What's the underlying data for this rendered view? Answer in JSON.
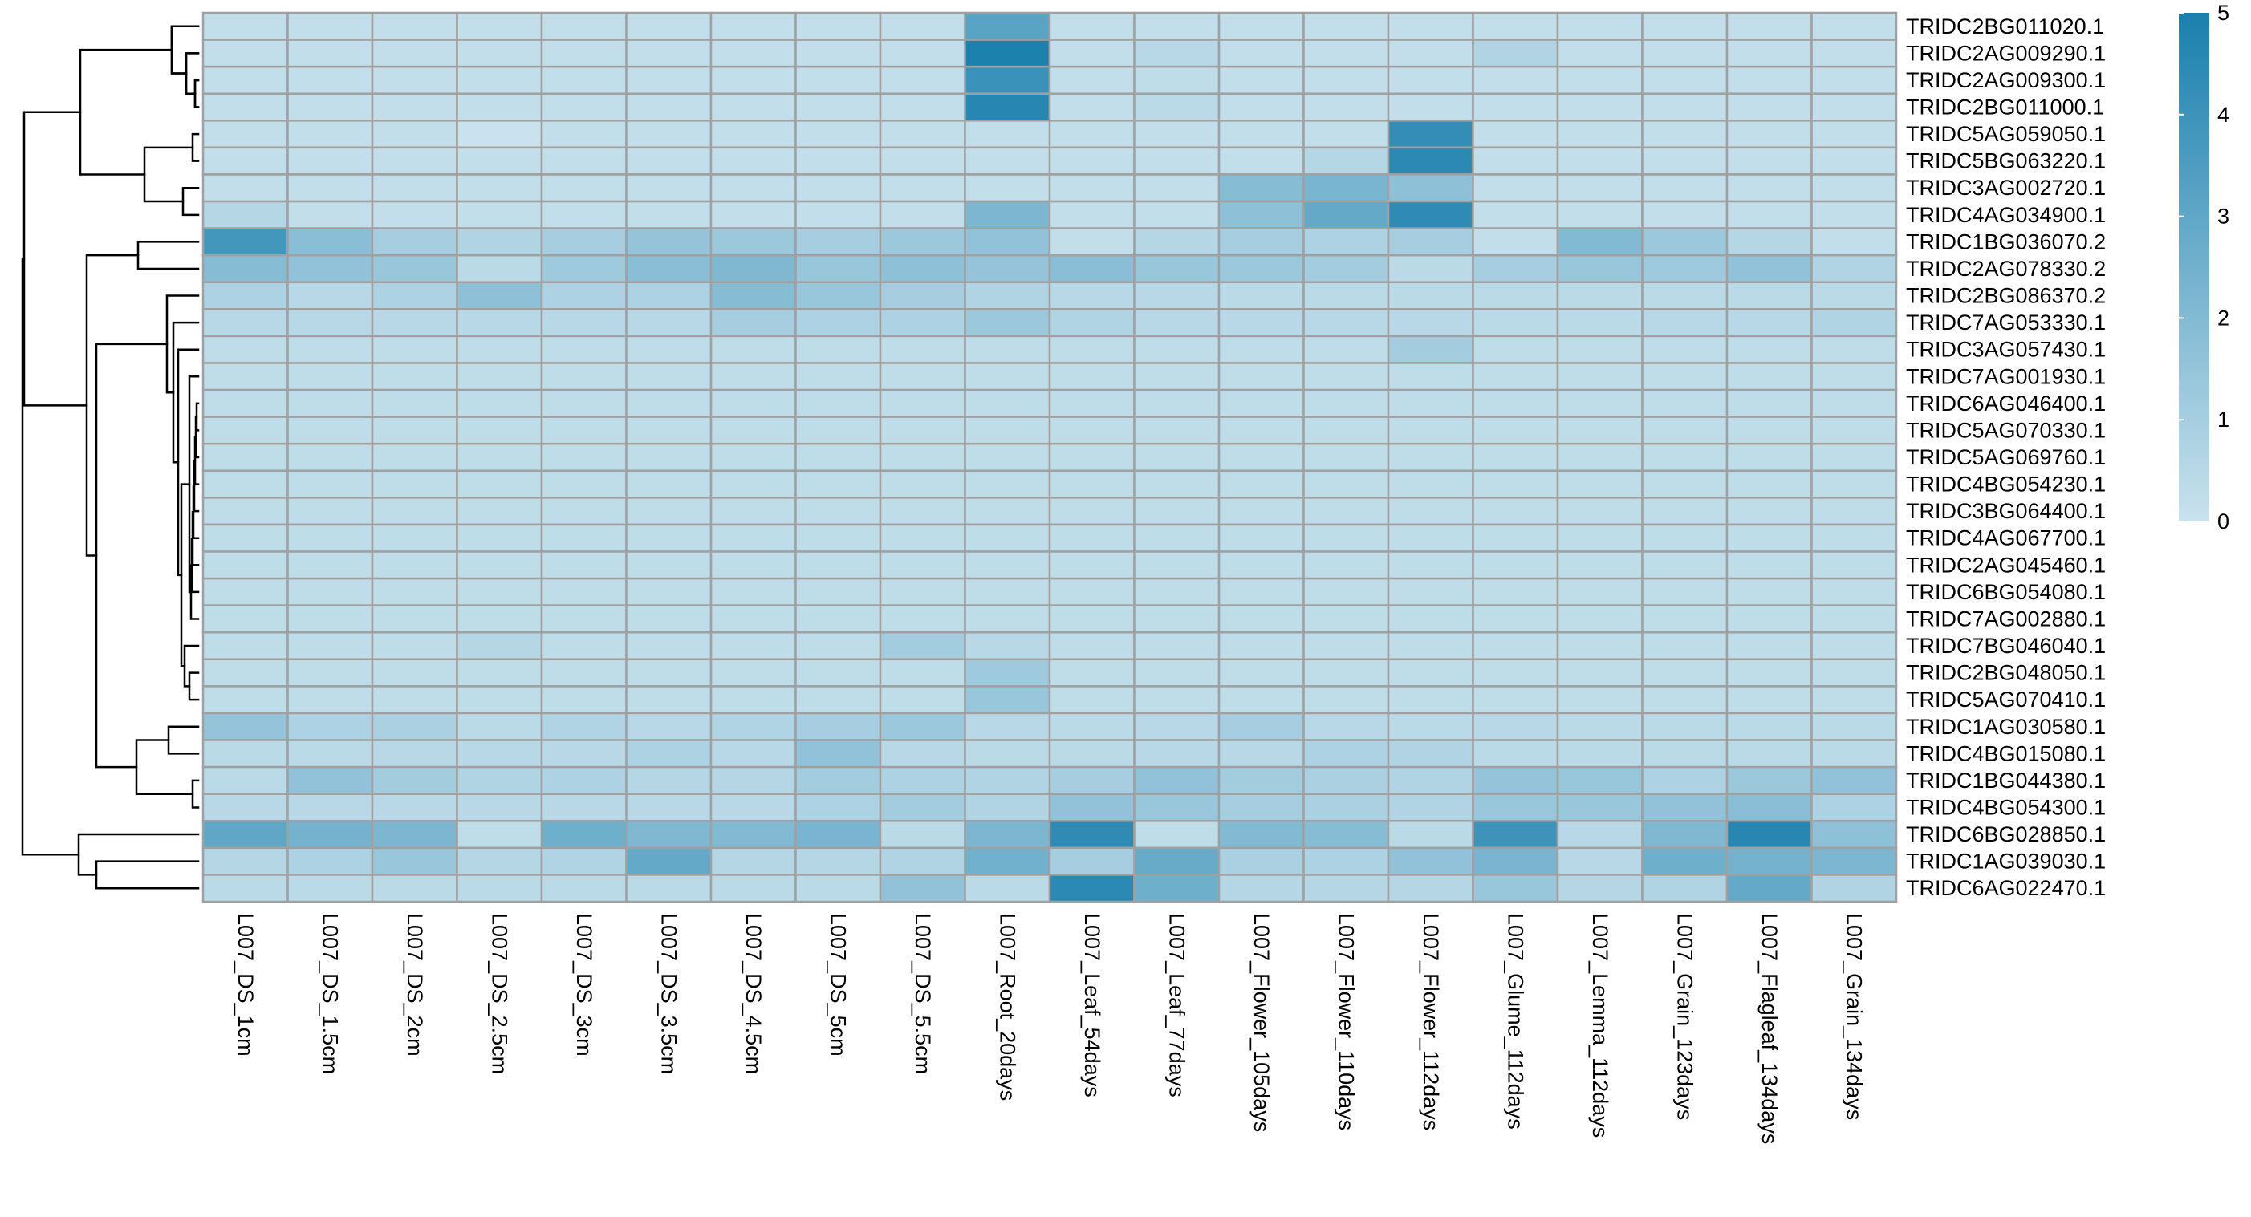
{
  "chart_data": {
    "type": "heatmap",
    "title": "",
    "xlabel": "",
    "ylabel": "",
    "columns": [
      "L007_DS_1cm",
      "L007_DS_1.5cm",
      "L007_DS_2cm",
      "L007_DS_2.5cm",
      "L007_DS_3cm",
      "L007_DS_3.5cm",
      "L007_DS_4.5cm",
      "L007_DS_5cm",
      "L007_DS_5.5cm",
      "L007_Root_20days",
      "L007_Leaf_54days",
      "L007_Leaf_77days",
      "L007_Flower_105days",
      "L007_Flower_110days",
      "L007_Flower_112days",
      "L007_Glume_112days",
      "L007_Lemma_112days",
      "L007_Grain_123days",
      "L007_Flagleaf_134days",
      "L007_Grain_134days"
    ],
    "rows": [
      "TRIDC2BG011020.1",
      "TRIDC2AG009290.1",
      "TRIDC2AG009300.1",
      "TRIDC2BG011000.1",
      "TRIDC5AG059050.1",
      "TRIDC5BG063220.1",
      "TRIDC3AG002720.1",
      "TRIDC4AG034900.1",
      "TRIDC1BG036070.2",
      "TRIDC2AG078330.2",
      "TRIDC2BG086370.2",
      "TRIDC7AG053330.1",
      "TRIDC3AG057430.1",
      "TRIDC7AG001930.1",
      "TRIDC6AG046400.1",
      "TRIDC5AG070330.1",
      "TRIDC5AG069760.1",
      "TRIDC4BG054230.1",
      "TRIDC3BG064400.1",
      "TRIDC4AG067700.1",
      "TRIDC2AG045460.1",
      "TRIDC6BG054080.1",
      "TRIDC7AG002880.1",
      "TRIDC7BG046040.1",
      "TRIDC2BG048050.1",
      "TRIDC5AG070410.1",
      "TRIDC1AG030580.1",
      "TRIDC4BG015080.1",
      "TRIDC1BG044380.1",
      "TRIDC4BG054300.1",
      "TRIDC6BG028850.1",
      "TRIDC1AG039030.1",
      "TRIDC6AG022470.1"
    ],
    "values": [
      [
        0.2,
        0.2,
        0.2,
        0.2,
        0.2,
        0.2,
        0.2,
        0.2,
        0.2,
        3.2,
        0.2,
        0.2,
        0.2,
        0.2,
        0.2,
        0.2,
        0.2,
        0.2,
        0.2,
        0.2
      ],
      [
        0.2,
        0.2,
        0.2,
        0.2,
        0.2,
        0.2,
        0.2,
        0.2,
        0.2,
        4.9,
        0.2,
        0.5,
        0.2,
        0.2,
        0.2,
        0.7,
        0.2,
        0.2,
        0.2,
        0.2
      ],
      [
        0.2,
        0.2,
        0.2,
        0.2,
        0.2,
        0.2,
        0.2,
        0.2,
        0.2,
        4.1,
        0.2,
        0.3,
        0.2,
        0.2,
        0.2,
        0.2,
        0.2,
        0.2,
        0.2,
        0.2
      ],
      [
        0.2,
        0.2,
        0.2,
        0.2,
        0.2,
        0.2,
        0.2,
        0.2,
        0.2,
        4.6,
        0.2,
        0.4,
        0.2,
        0.2,
        0.2,
        0.2,
        0.2,
        0.2,
        0.2,
        0.2
      ],
      [
        0.2,
        0.2,
        0.2,
        0.0,
        0.2,
        0.2,
        0.2,
        0.2,
        0.2,
        0.2,
        0.2,
        0.2,
        0.2,
        0.2,
        4.3,
        0.2,
        0.2,
        0.2,
        0.2,
        0.2
      ],
      [
        0.2,
        0.2,
        0.2,
        0.2,
        0.2,
        0.2,
        0.2,
        0.2,
        0.2,
        0.2,
        0.2,
        0.2,
        0.2,
        0.6,
        4.5,
        0.2,
        0.2,
        0.2,
        0.2,
        0.2
      ],
      [
        0.2,
        0.2,
        0.2,
        0.2,
        0.2,
        0.2,
        0.2,
        0.2,
        0.2,
        0.2,
        0.2,
        0.2,
        1.9,
        2.3,
        1.7,
        0.2,
        0.2,
        0.2,
        0.2,
        0.2
      ],
      [
        0.6,
        0.2,
        0.2,
        0.2,
        0.2,
        0.2,
        0.2,
        0.2,
        0.2,
        2.2,
        0.2,
        0.2,
        1.7,
        2.9,
        4.4,
        0.2,
        0.2,
        0.2,
        0.2,
        0.2
      ],
      [
        3.8,
        1.8,
        1.0,
        0.7,
        1.0,
        1.5,
        1.3,
        1.0,
        1.3,
        1.6,
        0.2,
        0.6,
        1.0,
        0.8,
        1.0,
        0.2,
        2.0,
        1.3,
        0.6,
        0.2
      ],
      [
        1.9,
        1.6,
        1.4,
        0.4,
        1.2,
        1.8,
        2.1,
        1.4,
        1.7,
        1.5,
        1.8,
        1.4,
        1.3,
        1.1,
        0.4,
        1.0,
        1.4,
        1.2,
        1.6,
        0.7
      ],
      [
        0.8,
        0.5,
        0.8,
        1.7,
        0.8,
        0.8,
        1.9,
        1.4,
        1.0,
        0.7,
        0.5,
        0.5,
        0.4,
        0.4,
        0.4,
        0.4,
        0.4,
        0.4,
        0.4,
        0.4
      ],
      [
        0.5,
        0.5,
        0.5,
        0.5,
        0.5,
        0.5,
        1.0,
        0.8,
        0.8,
        1.3,
        0.7,
        0.5,
        0.5,
        0.5,
        0.5,
        0.4,
        0.4,
        0.5,
        0.5,
        0.7
      ],
      [
        0.3,
        0.3,
        0.3,
        0.3,
        0.3,
        0.3,
        0.3,
        0.3,
        0.3,
        0.3,
        0.3,
        0.3,
        0.3,
        0.3,
        1.1,
        0.3,
        0.3,
        0.3,
        0.3,
        0.3
      ],
      [
        0.3,
        0.3,
        0.3,
        0.3,
        0.3,
        0.3,
        0.3,
        0.3,
        0.3,
        0.3,
        0.3,
        0.3,
        0.3,
        0.3,
        0.3,
        0.3,
        0.3,
        0.3,
        0.3,
        0.3
      ],
      [
        0.3,
        0.3,
        0.3,
        0.3,
        0.3,
        0.3,
        0.3,
        0.3,
        0.3,
        0.3,
        0.3,
        0.3,
        0.3,
        0.3,
        0.3,
        0.3,
        0.3,
        0.3,
        0.3,
        0.3
      ],
      [
        0.3,
        0.3,
        0.3,
        0.3,
        0.3,
        0.3,
        0.3,
        0.3,
        0.3,
        0.3,
        0.3,
        0.3,
        0.3,
        0.3,
        0.3,
        0.3,
        0.3,
        0.3,
        0.3,
        0.3
      ],
      [
        0.3,
        0.3,
        0.3,
        0.3,
        0.3,
        0.3,
        0.3,
        0.3,
        0.3,
        0.3,
        0.3,
        0.3,
        0.3,
        0.3,
        0.3,
        0.3,
        0.3,
        0.3,
        0.3,
        0.3
      ],
      [
        0.3,
        0.3,
        0.3,
        0.3,
        0.3,
        0.3,
        0.3,
        0.3,
        0.3,
        0.3,
        0.3,
        0.3,
        0.3,
        0.3,
        0.3,
        0.3,
        0.3,
        0.3,
        0.3,
        0.3
      ],
      [
        0.3,
        0.3,
        0.3,
        0.3,
        0.3,
        0.3,
        0.3,
        0.3,
        0.3,
        0.3,
        0.3,
        0.3,
        0.3,
        0.3,
        0.3,
        0.3,
        0.3,
        0.3,
        0.3,
        0.3
      ],
      [
        0.3,
        0.3,
        0.3,
        0.3,
        0.3,
        0.3,
        0.3,
        0.3,
        0.3,
        0.3,
        0.3,
        0.3,
        0.3,
        0.3,
        0.3,
        0.3,
        0.3,
        0.3,
        0.3,
        0.3
      ],
      [
        0.3,
        0.3,
        0.3,
        0.3,
        0.3,
        0.3,
        0.3,
        0.3,
        0.3,
        0.3,
        0.3,
        0.3,
        0.3,
        0.3,
        0.3,
        0.3,
        0.3,
        0.3,
        0.3,
        0.3
      ],
      [
        0.3,
        0.3,
        0.3,
        0.3,
        0.3,
        0.3,
        0.3,
        0.3,
        0.3,
        0.3,
        0.3,
        0.3,
        0.3,
        0.3,
        0.3,
        0.3,
        0.3,
        0.3,
        0.3,
        0.3
      ],
      [
        0.3,
        0.3,
        0.3,
        0.3,
        0.3,
        0.3,
        0.3,
        0.3,
        0.3,
        0.3,
        0.3,
        0.3,
        0.3,
        0.3,
        0.3,
        0.3,
        0.3,
        0.3,
        0.3,
        0.3
      ],
      [
        0.3,
        0.3,
        0.3,
        0.6,
        0.3,
        0.3,
        0.3,
        0.3,
        1.1,
        0.5,
        0.3,
        0.3,
        0.3,
        0.3,
        0.3,
        0.3,
        0.3,
        0.3,
        0.3,
        0.3
      ],
      [
        0.3,
        0.3,
        0.3,
        0.3,
        0.3,
        0.3,
        0.3,
        0.3,
        0.3,
        1.2,
        0.3,
        0.3,
        0.3,
        0.3,
        0.3,
        0.3,
        0.3,
        0.3,
        0.3,
        0.3
      ],
      [
        0.3,
        0.3,
        0.3,
        0.3,
        0.3,
        0.3,
        0.3,
        0.3,
        0.3,
        1.4,
        0.3,
        0.3,
        0.3,
        0.3,
        0.3,
        0.3,
        0.3,
        0.3,
        0.3,
        0.3
      ],
      [
        1.5,
        0.8,
        0.9,
        0.4,
        0.7,
        0.5,
        0.7,
        1.0,
        1.3,
        0.5,
        0.4,
        0.5,
        1.0,
        0.5,
        0.4,
        0.5,
        0.4,
        0.4,
        0.4,
        0.4
      ],
      [
        0.4,
        0.4,
        0.5,
        0.5,
        0.5,
        0.8,
        0.5,
        1.6,
        0.5,
        0.4,
        0.4,
        0.5,
        0.5,
        0.8,
        0.7,
        0.4,
        0.4,
        0.4,
        0.4,
        0.4
      ],
      [
        0.4,
        1.6,
        1.1,
        0.7,
        0.8,
        0.6,
        0.6,
        1.1,
        0.8,
        0.7,
        1.0,
        1.6,
        1.1,
        0.9,
        0.7,
        1.5,
        1.4,
        0.8,
        1.3,
        1.6
      ],
      [
        0.5,
        0.5,
        0.5,
        0.5,
        0.5,
        0.5,
        0.5,
        0.8,
        1.1,
        0.7,
        1.6,
        1.4,
        1.0,
        0.9,
        0.7,
        1.4,
        1.4,
        1.6,
        1.8,
        0.8
      ],
      [
        3.0,
        2.4,
        2.2,
        0.3,
        2.6,
        2.1,
        2.0,
        2.3,
        0.4,
        2.2,
        4.4,
        0.3,
        2.0,
        1.9,
        0.4,
        4.0,
        0.5,
        2.1,
        4.6,
        1.7
      ],
      [
        0.6,
        0.8,
        1.4,
        0.6,
        0.7,
        2.9,
        0.6,
        0.6,
        0.7,
        2.5,
        1.0,
        2.8,
        0.9,
        0.8,
        1.6,
        2.3,
        0.5,
        2.6,
        2.4,
        2.2
      ],
      [
        0.4,
        0.4,
        0.4,
        0.4,
        0.4,
        0.4,
        0.4,
        0.4,
        1.6,
        0.4,
        4.5,
        2.6,
        0.6,
        0.6,
        0.6,
        1.4,
        0.6,
        0.7,
        2.9,
        0.7
      ]
    ],
    "colorbar": {
      "min": 0,
      "max": 5,
      "ticks": [
        "5",
        "4",
        "3",
        "2",
        "1",
        "0"
      ],
      "low_color": "#c9e2ed",
      "high_color": "#1a7fad"
    },
    "row_dendrogram": "left",
    "cell_border_color": "#a0a0a0"
  }
}
